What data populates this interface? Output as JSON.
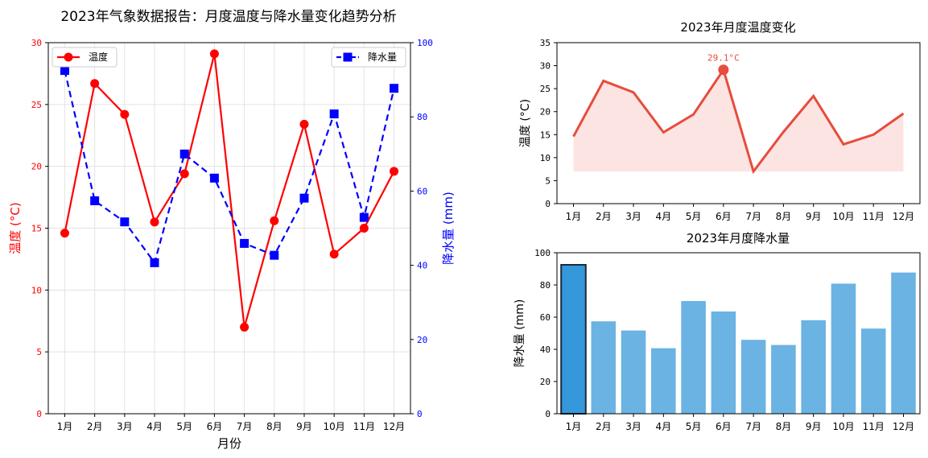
{
  "main_title": "2023年气象数据报告：月度温度与降水量变化趋势分析",
  "colors": {
    "temp_line": "#ff0000",
    "rain_line": "#0000ff",
    "temp_panel": "#e74c3c",
    "temp_fill": "#fadbd8",
    "bar": "#6ab3e3",
    "bar_highlight": "#3498db",
    "bar_edge": "#1a2a3a",
    "grid": "#e3e3e3"
  },
  "chart_data": [
    {
      "type": "line",
      "title": "",
      "categories": [
        "1月",
        "2月",
        "3月",
        "4月",
        "5月",
        "6月",
        "7月",
        "8月",
        "9月",
        "10月",
        "11月",
        "12月"
      ],
      "xlabel": "月份",
      "ylabel_left": "温度 (°C)",
      "ylabel_right": "降水量 (mm)",
      "ylim_left": [
        0,
        30
      ],
      "ylim_right": [
        0,
        100
      ],
      "yticks_left": [
        "0",
        "5",
        "10",
        "15",
        "20",
        "25",
        "30"
      ],
      "yticks_right": [
        "0",
        "20",
        "40",
        "60",
        "80",
        "100"
      ],
      "grid": true,
      "legend": [
        {
          "name": "温度",
          "position": "top-left"
        },
        {
          "name": "降水量",
          "position": "top-right"
        }
      ],
      "series": [
        {
          "name": "温度",
          "axis": "left",
          "style": "solid",
          "marker": "circle",
          "values": [
            14.6,
            26.7,
            24.2,
            15.5,
            19.4,
            29.1,
            7.0,
            15.6,
            23.4,
            12.9,
            15.0,
            19.6
          ]
        },
        {
          "name": "降水量",
          "axis": "right",
          "style": "dashed",
          "marker": "square",
          "values": [
            92.5,
            57.4,
            51.7,
            40.7,
            70.0,
            63.5,
            45.9,
            42.7,
            58.1,
            80.8,
            52.9,
            87.7
          ]
        }
      ]
    },
    {
      "type": "area",
      "title": "2023年月度温度变化",
      "categories": [
        "1月",
        "2月",
        "3月",
        "4月",
        "5月",
        "6月",
        "7月",
        "8月",
        "9月",
        "10月",
        "11月",
        "12月"
      ],
      "ylabel": "温度 (°C)",
      "ylim": [
        0,
        35
      ],
      "yticks": [
        "0",
        "5",
        "10",
        "15",
        "20",
        "25",
        "30",
        "35"
      ],
      "fill_baseline": 7.0,
      "annotation": {
        "label": "29.1°C",
        "category": "6月",
        "value": 29.1
      },
      "values": [
        14.6,
        26.7,
        24.2,
        15.5,
        19.4,
        29.1,
        7.0,
        15.6,
        23.4,
        12.9,
        15.0,
        19.6
      ]
    },
    {
      "type": "bar",
      "title": "2023年月度降水量",
      "categories": [
        "1月",
        "2月",
        "3月",
        "4月",
        "5月",
        "6月",
        "7月",
        "8月",
        "9月",
        "10月",
        "11月",
        "12月"
      ],
      "ylabel": "降水量 (mm)",
      "ylim": [
        0,
        100
      ],
      "yticks": [
        "0",
        "20",
        "40",
        "60",
        "80",
        "100"
      ],
      "highlight_category": "1月",
      "values": [
        92.5,
        57.4,
        51.7,
        40.7,
        70.0,
        63.5,
        45.9,
        42.7,
        58.1,
        80.8,
        52.9,
        87.7
      ]
    }
  ]
}
